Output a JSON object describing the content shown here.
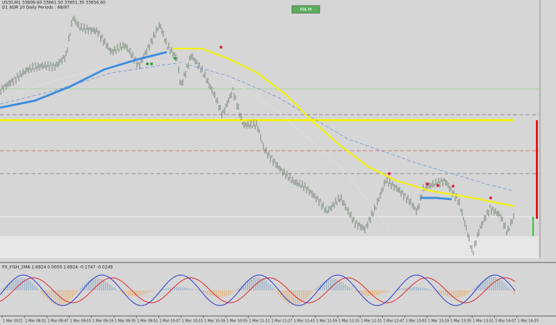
{
  "chart_header": {
    "symbol_info": "US30,M1 33609.60 33661.50 33651.30 33656.60",
    "adr_info": "D1 ADR 20 Daily Periods : 68/97"
  },
  "toolbar": {
    "button": "MA M"
  },
  "indicator": {
    "label": "PX_FISH_2MA 1.6924 0.0000 1.6924 -0.1747 -0.0249"
  },
  "time_axis": {
    "labels": [
      "1 Mar 2022",
      "1 Mar 08:31",
      "1 Mar 08:47",
      "1 Mar 09:03",
      "1 Mar 09:19",
      "1 Mar 09:35",
      "1 Mar 09:51",
      "1 Mar 10:07",
      "1 Mar 10:23",
      "1 Mar 10:39",
      "1 Mar 10:55",
      "1 Mar 11:11",
      "1 Mar 11:27",
      "1 Mar 11:43",
      "1 Mar 11:59",
      "1 Mar 12:15",
      "1 Mar 12:31",
      "1 Mar 12:47",
      "1 Mar 13:03",
      "1 Mar 13:19",
      "1 Mar 13:35",
      "1 Mar 13:51",
      "1 Mar 14:07",
      "1 Mar 14:23"
    ]
  }
}
